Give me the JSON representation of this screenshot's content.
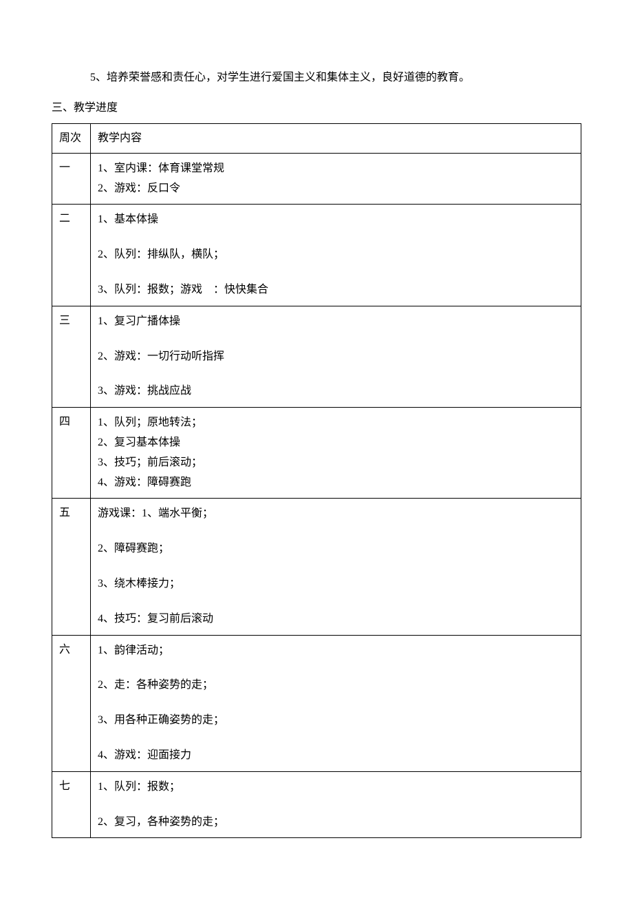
{
  "intro_text": "5、培养荣誉感和责任心，对学生进行爱国主义和集体主义，良好道德的教育。",
  "section_title": "三、教学进度",
  "header": {
    "week": "周次",
    "content": "教学内容"
  },
  "rows": [
    {
      "week": "一",
      "spaced": false,
      "lines": [
        "1、室内课：体育课堂常规",
        "2、游戏：反口令"
      ]
    },
    {
      "week": "二",
      "spaced": true,
      "lines": [
        "1、基本体操",
        "2、队列：排纵队，横队；",
        "3、队列：报数；游戏　：快快集合"
      ]
    },
    {
      "week": "三",
      "spaced": true,
      "lines": [
        "1、复习广播体操",
        "2、游戏：一切行动听指挥",
        "3、游戏：挑战应战"
      ]
    },
    {
      "week": "四",
      "spaced": false,
      "lines": [
        "1、队列；原地转法；",
        "2、复习基本体操",
        "3、技巧；前后滚动；",
        "4、游戏：障碍赛跑"
      ]
    },
    {
      "week": "五",
      "spaced": true,
      "lines": [
        "游戏课：1、端水平衡；",
        "2、障碍赛跑；",
        "3、绕木棒接力；",
        "4、技巧：复习前后滚动"
      ]
    },
    {
      "week": "六",
      "spaced": true,
      "lines": [
        "1、韵律活动；",
        "2、走：各种姿势的走；",
        "3、用各种正确姿势的走；",
        "4、游戏：迎面接力"
      ]
    },
    {
      "week": "七",
      "spaced": true,
      "lines": [
        "1、队列：报数；",
        "2、复习，各种姿势的走；"
      ]
    }
  ]
}
